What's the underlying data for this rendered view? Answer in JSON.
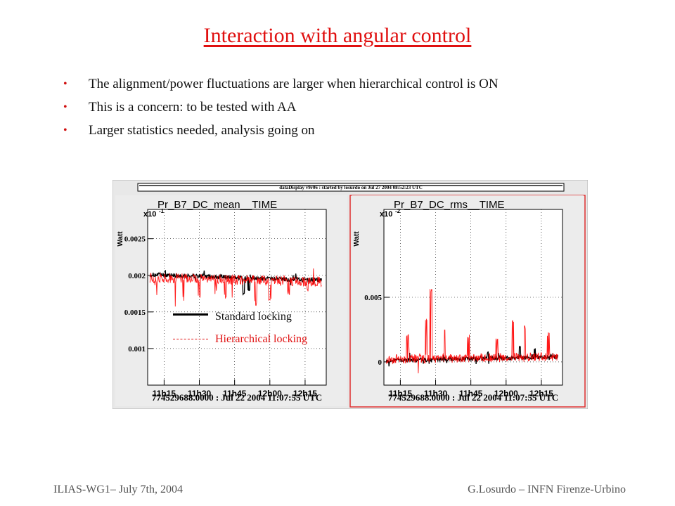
{
  "slide": {
    "title": "Interaction with angular control",
    "bullets": [
      "The alignment/power fluctuations are larger when hierarchical control is ON",
      "This is a concern: to be tested with AA",
      "Larger statistics needed, analysis going on"
    ],
    "footer_left": "ILIAS-WG1– July 7th, 2004",
    "footer_right": "G.Losurdo – INFN Firenze-Urbino"
  },
  "window": {
    "title": "dataDisplay v9r06 : started by losurdo on Jul 27 2004 08:52:23 UTC"
  },
  "legend": {
    "standard": "Standard locking",
    "hierarchical": "Hierarchical  locking"
  },
  "colors": {
    "title": "#e01010",
    "standard": "#000000",
    "hierarchical": "#ff0000",
    "plot_bg": "#ffffff",
    "canvas_bg": "#e8e8e8"
  },
  "chart_data": [
    {
      "type": "line",
      "title": "Pr_B7_DC_mean__TIME",
      "ylabel": "Watt",
      "yexponent": "x10",
      "yexponent_power": "-1",
      "y_ticks": [
        "0.0025",
        "0.002",
        "0.0015",
        "0.001"
      ],
      "x_ticks": [
        "11h15",
        "11h30",
        "11h45",
        "12h00",
        "12h15"
      ],
      "xlabel": "774529688.0000 : Jul 22 2004 11:07:55 UTC",
      "ylim": [
        0.0005,
        0.0029
      ],
      "xlim_minutes": [
        0,
        76
      ],
      "x_tick_minutes": [
        7,
        22,
        37,
        52,
        67
      ],
      "y_tick_values": [
        0.0025,
        0.002,
        0.0015,
        0.001
      ],
      "series": [
        {
          "name": "Standard locking",
          "color": "#000000",
          "baseline": 0.00201,
          "noise": 3e-05,
          "drift": -8e-05,
          "spikes": [
            {
              "x": 41,
              "y": 0.00174
            },
            {
              "x": 43,
              "y": 0.0018
            }
          ]
        },
        {
          "name": "Hierarchical  locking",
          "color": "#ff0000",
          "baseline": 0.00197,
          "noise": 7e-05,
          "drift": -6e-05,
          "spikes": [
            {
              "x": 12,
              "y": 0.0016
            },
            {
              "x": 15,
              "y": 0.00168
            },
            {
              "x": 22,
              "y": 0.00172
            },
            {
              "x": 29,
              "y": 0.00176
            },
            {
              "x": 33,
              "y": 0.0017
            },
            {
              "x": 46,
              "y": 0.00162
            },
            {
              "x": 52,
              "y": 0.00166
            },
            {
              "x": 60,
              "y": 0.00174
            },
            {
              "x": 68,
              "y": 0.00178
            }
          ]
        }
      ]
    },
    {
      "type": "line",
      "title": "Pr_B7_DC_rms__TIME",
      "ylabel": "Watt",
      "yexponent": "x10",
      "yexponent_power": "-2",
      "y_ticks": [
        "0.005",
        "0"
      ],
      "x_ticks": [
        "11h15",
        "11h30",
        "11h45",
        "12h00",
        "12h15"
      ],
      "xlabel": "774529688.0000 : Jul 22 2004 11:07:55 UTC",
      "ylim": [
        -0.0018,
        0.0118
      ],
      "xlim_minutes": [
        0,
        76
      ],
      "x_tick_minutes": [
        7,
        22,
        37,
        52,
        67
      ],
      "y_tick_values": [
        0.005,
        0
      ],
      "series": [
        {
          "name": "Standard locking",
          "color": "#000000",
          "baseline": 0.0001,
          "noise": 0.00015,
          "drift": 0.0003,
          "spikes": [
            {
              "x": 44,
              "y": 0.0007
            },
            {
              "x": 58,
              "y": 0.0012
            },
            {
              "x": 64,
              "y": 0.001
            }
          ]
        },
        {
          "name": "Hierarchical  locking",
          "color": "#ff0000",
          "baseline": 0.0002,
          "noise": 0.00035,
          "drift": 0.0002,
          "spikes": [
            {
              "x": 10,
              "y": 0.0021
            },
            {
              "x": 18,
              "y": 0.0032
            },
            {
              "x": 20,
              "y": 0.0055
            },
            {
              "x": 26,
              "y": 0.0025
            },
            {
              "x": 36,
              "y": 0.002
            },
            {
              "x": 48,
              "y": 0.0018
            },
            {
              "x": 55,
              "y": 0.0031
            },
            {
              "x": 60,
              "y": 0.0027
            },
            {
              "x": 70,
              "y": 0.0022
            }
          ]
        }
      ]
    }
  ]
}
